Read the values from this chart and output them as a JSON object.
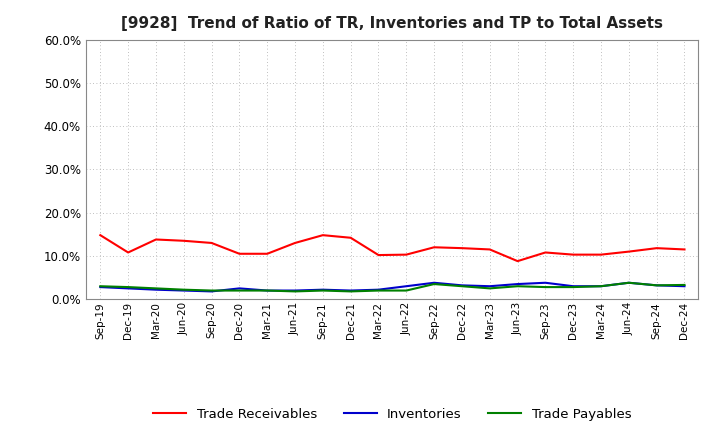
{
  "title": "[9928]  Trend of Ratio of TR, Inventories and TP to Total Assets",
  "x_labels": [
    "Sep-19",
    "Dec-19",
    "Mar-20",
    "Jun-20",
    "Sep-20",
    "Dec-20",
    "Mar-21",
    "Jun-21",
    "Sep-21",
    "Dec-21",
    "Mar-22",
    "Jun-22",
    "Sep-22",
    "Dec-22",
    "Mar-23",
    "Jun-23",
    "Sep-23",
    "Dec-23",
    "Mar-24",
    "Jun-24",
    "Sep-24",
    "Dec-24"
  ],
  "trade_receivables": [
    0.148,
    0.108,
    0.138,
    0.135,
    0.13,
    0.105,
    0.105,
    0.13,
    0.148,
    0.142,
    0.102,
    0.103,
    0.12,
    0.118,
    0.115,
    0.088,
    0.108,
    0.103,
    0.103,
    0.11,
    0.118,
    0.115
  ],
  "inventories": [
    0.028,
    0.025,
    0.022,
    0.02,
    0.018,
    0.025,
    0.02,
    0.02,
    0.022,
    0.02,
    0.022,
    0.03,
    0.038,
    0.032,
    0.03,
    0.035,
    0.038,
    0.03,
    0.03,
    0.038,
    0.032,
    0.03
  ],
  "trade_payables": [
    0.03,
    0.028,
    0.025,
    0.022,
    0.02,
    0.02,
    0.02,
    0.018,
    0.02,
    0.018,
    0.02,
    0.02,
    0.035,
    0.03,
    0.025,
    0.03,
    0.028,
    0.028,
    0.03,
    0.038,
    0.032,
    0.033
  ],
  "tr_color": "#FF0000",
  "inv_color": "#0000CC",
  "tp_color": "#008000",
  "ylim": [
    0.0,
    0.6
  ],
  "yticks": [
    0.0,
    0.1,
    0.2,
    0.3,
    0.4,
    0.5,
    0.6
  ],
  "legend_labels": [
    "Trade Receivables",
    "Inventories",
    "Trade Payables"
  ],
  "bg_color": "#FFFFFF",
  "grid_color": "#AAAAAA"
}
